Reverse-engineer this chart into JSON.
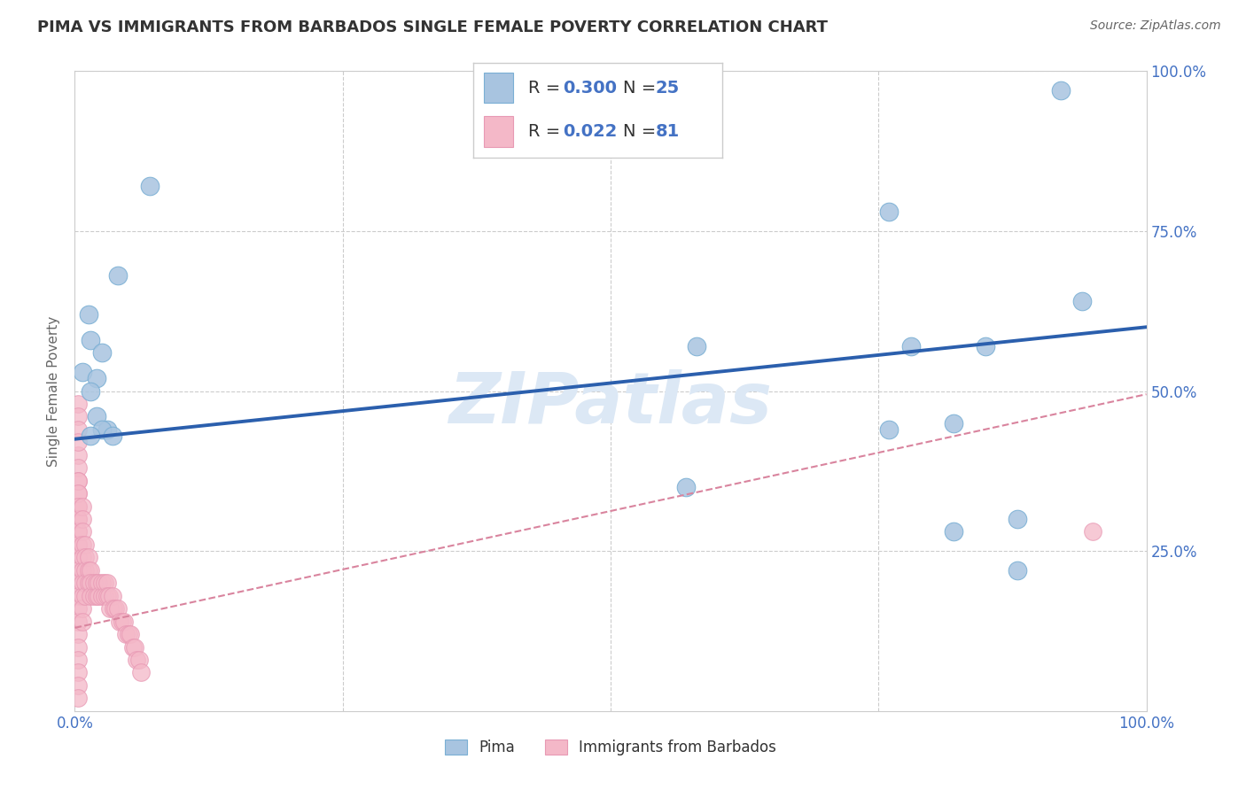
{
  "title": "PIMA VS IMMIGRANTS FROM BARBADOS SINGLE FEMALE POVERTY CORRELATION CHART",
  "source": "Source: ZipAtlas.com",
  "ylabel": "Single Female Poverty",
  "xlim": [
    0.0,
    1.0
  ],
  "ylim": [
    0.0,
    1.0
  ],
  "pima_color": "#a8c4e0",
  "barbados_color": "#f4b8c8",
  "pima_edge_color": "#7aafd4",
  "barbados_edge_color": "#e899b4",
  "pima_line_color": "#2b5fad",
  "barbados_line_color": "#d9849e",
  "tick_color": "#4472c4",
  "background_color": "#ffffff",
  "grid_color": "#cccccc",
  "title_color": "#333333",
  "watermark_color": "#dce8f5",
  "pima_x": [
    0.007,
    0.013,
    0.04,
    0.07,
    0.015,
    0.025,
    0.02,
    0.015,
    0.02,
    0.03,
    0.025,
    0.035,
    0.015,
    0.58,
    0.76,
    0.78,
    0.82,
    0.85,
    0.88,
    0.92,
    0.94,
    0.57,
    0.76,
    0.82,
    0.88
  ],
  "pima_y": [
    0.53,
    0.62,
    0.68,
    0.82,
    0.58,
    0.56,
    0.52,
    0.5,
    0.46,
    0.44,
    0.44,
    0.43,
    0.43,
    0.57,
    0.78,
    0.57,
    0.45,
    0.57,
    0.3,
    0.97,
    0.64,
    0.35,
    0.44,
    0.28,
    0.22
  ],
  "barbados_x": [
    0.003,
    0.003,
    0.003,
    0.003,
    0.003,
    0.003,
    0.003,
    0.003,
    0.003,
    0.003,
    0.003,
    0.003,
    0.003,
    0.003,
    0.003,
    0.003,
    0.003,
    0.003,
    0.003,
    0.003,
    0.003,
    0.003,
    0.003,
    0.003,
    0.003,
    0.003,
    0.003,
    0.003,
    0.003,
    0.003,
    0.007,
    0.007,
    0.007,
    0.007,
    0.007,
    0.007,
    0.007,
    0.007,
    0.007,
    0.007,
    0.01,
    0.01,
    0.01,
    0.01,
    0.01,
    0.013,
    0.013,
    0.013,
    0.015,
    0.015,
    0.015,
    0.018,
    0.018,
    0.02,
    0.02,
    0.022,
    0.022,
    0.025,
    0.025,
    0.028,
    0.028,
    0.03,
    0.03,
    0.032,
    0.033,
    0.035,
    0.036,
    0.038,
    0.04,
    0.042,
    0.044,
    0.046,
    0.048,
    0.05,
    0.052,
    0.054,
    0.056,
    0.058,
    0.06,
    0.062,
    0.95
  ],
  "barbados_y": [
    0.4,
    0.38,
    0.36,
    0.34,
    0.32,
    0.3,
    0.28,
    0.26,
    0.24,
    0.22,
    0.2,
    0.18,
    0.16,
    0.14,
    0.12,
    0.1,
    0.08,
    0.06,
    0.04,
    0.02,
    0.48,
    0.46,
    0.44,
    0.42,
    0.36,
    0.34,
    0.32,
    0.3,
    0.28,
    0.26,
    0.32,
    0.3,
    0.28,
    0.26,
    0.24,
    0.22,
    0.2,
    0.18,
    0.16,
    0.14,
    0.26,
    0.24,
    0.22,
    0.2,
    0.18,
    0.24,
    0.22,
    0.2,
    0.22,
    0.2,
    0.18,
    0.2,
    0.18,
    0.2,
    0.18,
    0.2,
    0.18,
    0.2,
    0.18,
    0.2,
    0.18,
    0.2,
    0.18,
    0.18,
    0.16,
    0.18,
    0.16,
    0.16,
    0.16,
    0.14,
    0.14,
    0.14,
    0.12,
    0.12,
    0.12,
    0.1,
    0.1,
    0.08,
    0.08,
    0.06,
    0.28
  ],
  "pima_trendline_x": [
    0.0,
    1.0
  ],
  "pima_trendline_y": [
    0.425,
    0.6
  ],
  "barbados_trendline_x": [
    0.0,
    1.0
  ],
  "barbados_trendline_y": [
    0.13,
    0.495
  ]
}
